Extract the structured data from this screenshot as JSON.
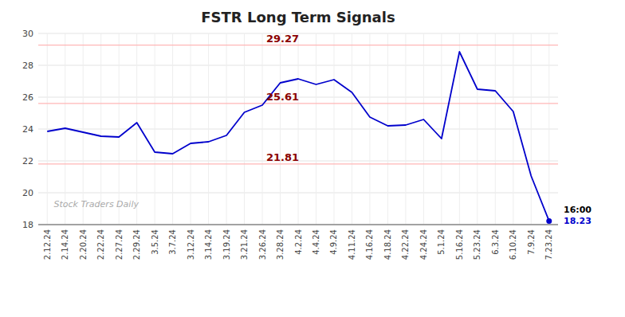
{
  "chart_data": {
    "type": "line",
    "title": "FSTR Long Term Signals",
    "categories": [
      "2.12.24",
      "2.14.24",
      "2.20.24",
      "2.22.24",
      "2.27.24",
      "2.29.24",
      "3.5.24",
      "3.7.24",
      "3.12.24",
      "3.14.24",
      "3.19.24",
      "3.21.24",
      "3.26.24",
      "3.28.24",
      "4.2.24",
      "4.4.24",
      "4.9.24",
      "4.11.24",
      "4.16.24",
      "4.18.24",
      "4.22.24",
      "4.24.24",
      "5.1.24",
      "5.16.24",
      "5.23.24",
      "6.3.24",
      "6.10.24",
      "7.9.24",
      "7.23.24"
    ],
    "values": [
      23.85,
      24.05,
      23.8,
      23.55,
      23.5,
      24.4,
      22.55,
      22.45,
      23.1,
      23.2,
      23.6,
      25.05,
      25.5,
      26.9,
      27.15,
      26.8,
      27.1,
      26.3,
      24.75,
      24.2,
      24.25,
      24.6,
      23.4,
      28.85,
      26.5,
      26.4,
      25.1,
      21.05,
      18.23
    ],
    "color": "#0000cc",
    "ylim": [
      18,
      30
    ],
    "yticks": [
      18,
      20,
      22,
      24,
      26,
      28,
      30
    ],
    "grid": true,
    "hlines": [
      {
        "value": 29.27,
        "label": "29.27",
        "color": "#ffb6b6"
      },
      {
        "value": 25.61,
        "label": "25.61",
        "color": "#ffb6b6"
      },
      {
        "value": 21.81,
        "label": "21.81",
        "color": "#ffb6b6"
      }
    ],
    "annotations": [
      {
        "text": "16:00",
        "value": 18.23
      },
      {
        "text": "18.23",
        "value": 18.23,
        "color": "#0000cc"
      },
      {
        "text": "Stock Traders Daily"
      }
    ]
  }
}
